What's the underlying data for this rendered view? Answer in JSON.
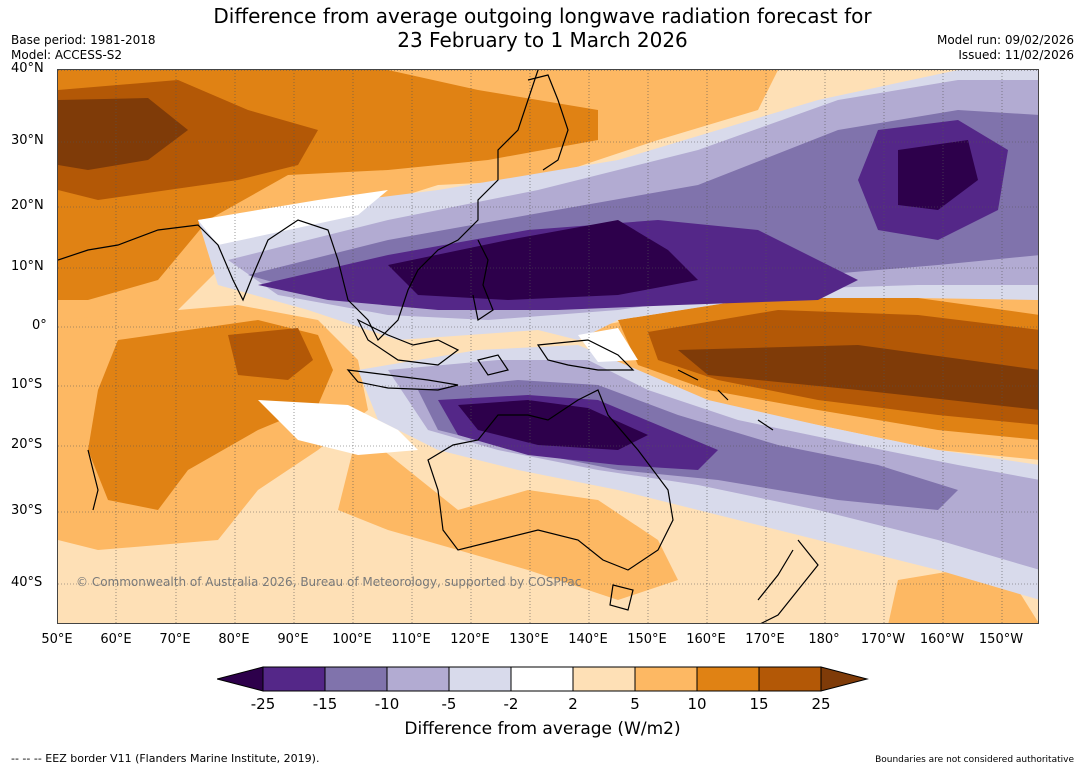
{
  "header": {
    "title_line1": "Difference from average outgoing longwave radiation forecast for",
    "title_line2": "23 February to 1 March 2026",
    "base_period": "Base period: 1981-2018",
    "model": "Model: ACCESS-S2",
    "model_run": "Model run: 09/02/2026",
    "issued": "Issued: 11/02/2026"
  },
  "map": {
    "lat_labels": [
      "40°N",
      "30°N",
      "20°N",
      "10°N",
      "0°",
      "10°S",
      "20°S",
      "30°S",
      "40°S"
    ],
    "lon_labels": [
      "50°E",
      "60°E",
      "70°E",
      "80°E",
      "90°E",
      "100°E",
      "110°E",
      "120°E",
      "130°E",
      "140°E",
      "150°E",
      "160°E",
      "170°E",
      "180°",
      "170°W",
      "160°W",
      "150°W"
    ],
    "copyright": "© Commonwealth of Australia 2026, Bureau of Meteorology, supported by COSPPac"
  },
  "colorbar": {
    "ticks": [
      "-25",
      "-15",
      "-10",
      "-5",
      "-2",
      "2",
      "5",
      "10",
      "15",
      "25"
    ],
    "colors": [
      "#2d004b",
      "#542788",
      "#8073ac",
      "#b2abd2",
      "#d8daeb",
      "#ffffff",
      "#fee0b6",
      "#fdb863",
      "#e08214",
      "#b35806",
      "#7f3b08"
    ],
    "title": "Difference from average (W/m2)"
  },
  "footer": {
    "eez_note": "--  --  -- EEZ border V11 (Flanders Marine Institute, 2019).",
    "disclaimer": "Boundaries are not considered authoritative"
  }
}
